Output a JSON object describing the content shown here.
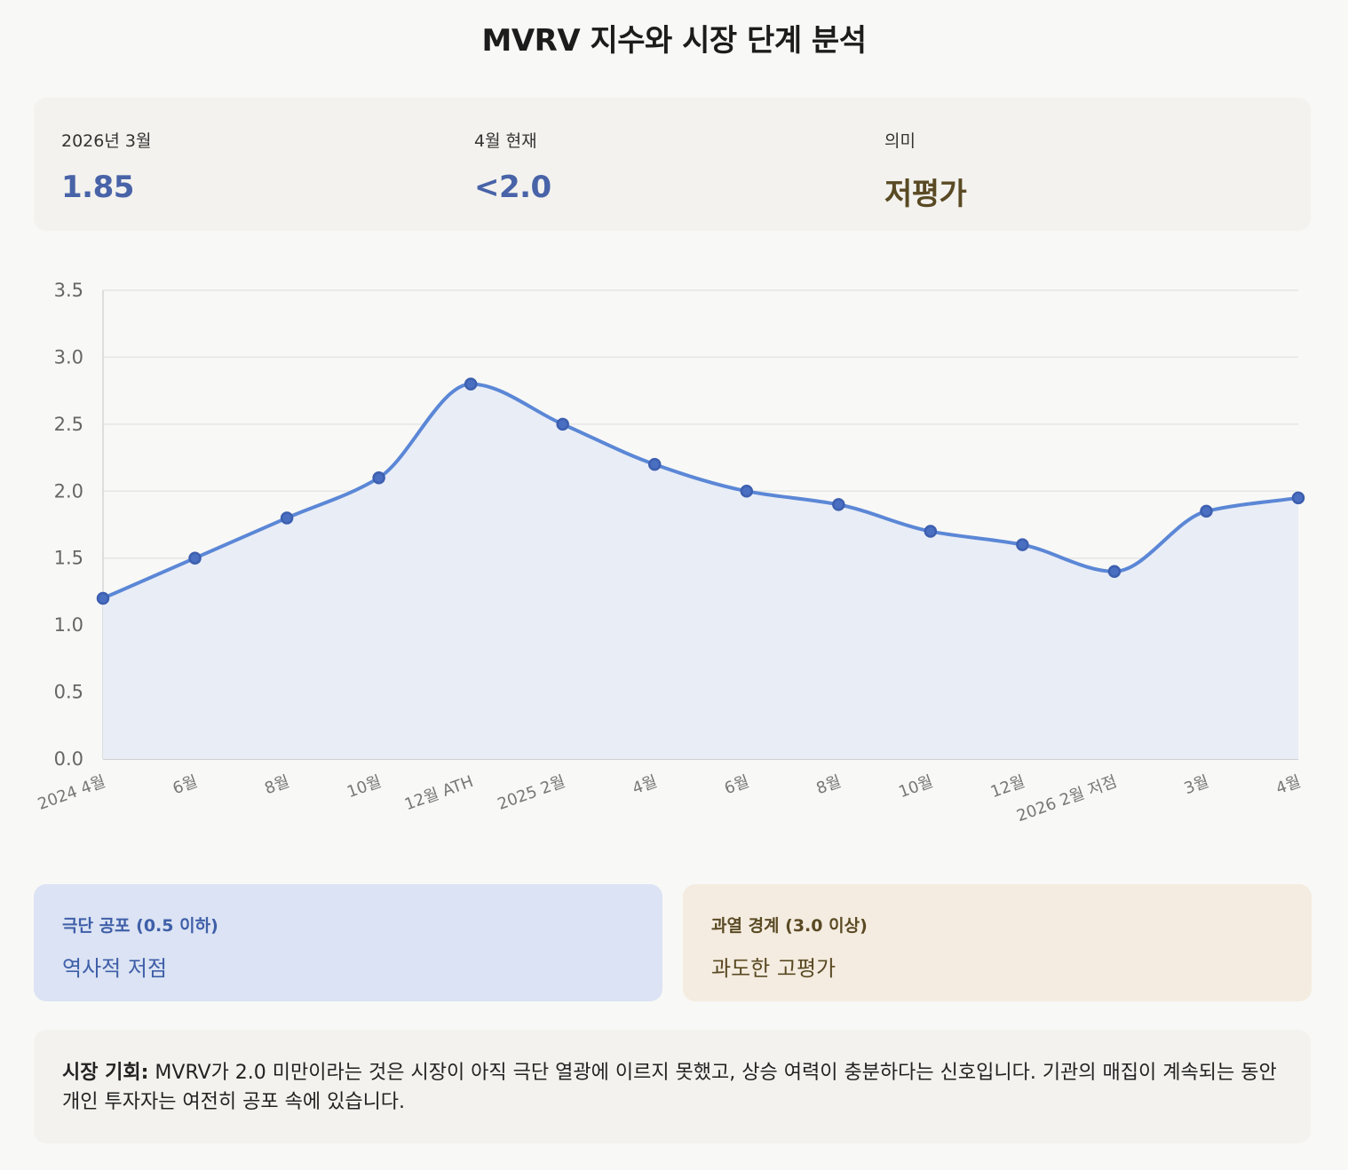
{
  "title": "MVRV 지수와 시장 단계 분석",
  "stats": [
    {
      "label": "2026년 3월",
      "value": "1.85",
      "color": "#4863a8"
    },
    {
      "label": "4월 현재",
      "value": "<2.0",
      "color": "#4863a8"
    },
    {
      "label": "의미",
      "value": "저평가",
      "color": "#5a4a24"
    }
  ],
  "cards": {
    "fear": {
      "label": "극단 공포 (0.5 이하)",
      "value": "역사적 저점"
    },
    "greed": {
      "label": "과열 경계 (3.0 이상)",
      "value": "과도한 고평가"
    }
  },
  "note": {
    "label": "시장 기회:",
    "text": " MVRV가 2.0 미만이라는 것은 시장이 아직 극단 열광에 이르지 못했고, 상승 여력이 충분하다는 신호입니다. 기관의 매집이 계속되는 동안 개인 투자자는 여전히 공포 속에 있습니다."
  },
  "chart_data": {
    "type": "area",
    "categories": [
      "2024 4월",
      "6월",
      "8월",
      "10월",
      "12월 ATH",
      "2025 2월",
      "4월",
      "6월",
      "8월",
      "10월",
      "12월",
      "2026 2월 저점",
      "3월",
      "4월"
    ],
    "series": [
      {
        "values": [
          1.2,
          1.5,
          1.8,
          2.1,
          2.8,
          2.5,
          2.2,
          2.0,
          1.9,
          1.7,
          1.6,
          1.4,
          1.85,
          1.95
        ]
      }
    ],
    "yticks": [
      "0.0",
      "0.5",
      "1.0",
      "1.5",
      "2.0",
      "2.5",
      "3.0",
      "3.5"
    ],
    "ylim": [
      0,
      3.5
    ],
    "grid": true,
    "line_color": "#5b87d6",
    "fill_color": "#e9edf6",
    "point_color": "#3d5fb0"
  }
}
